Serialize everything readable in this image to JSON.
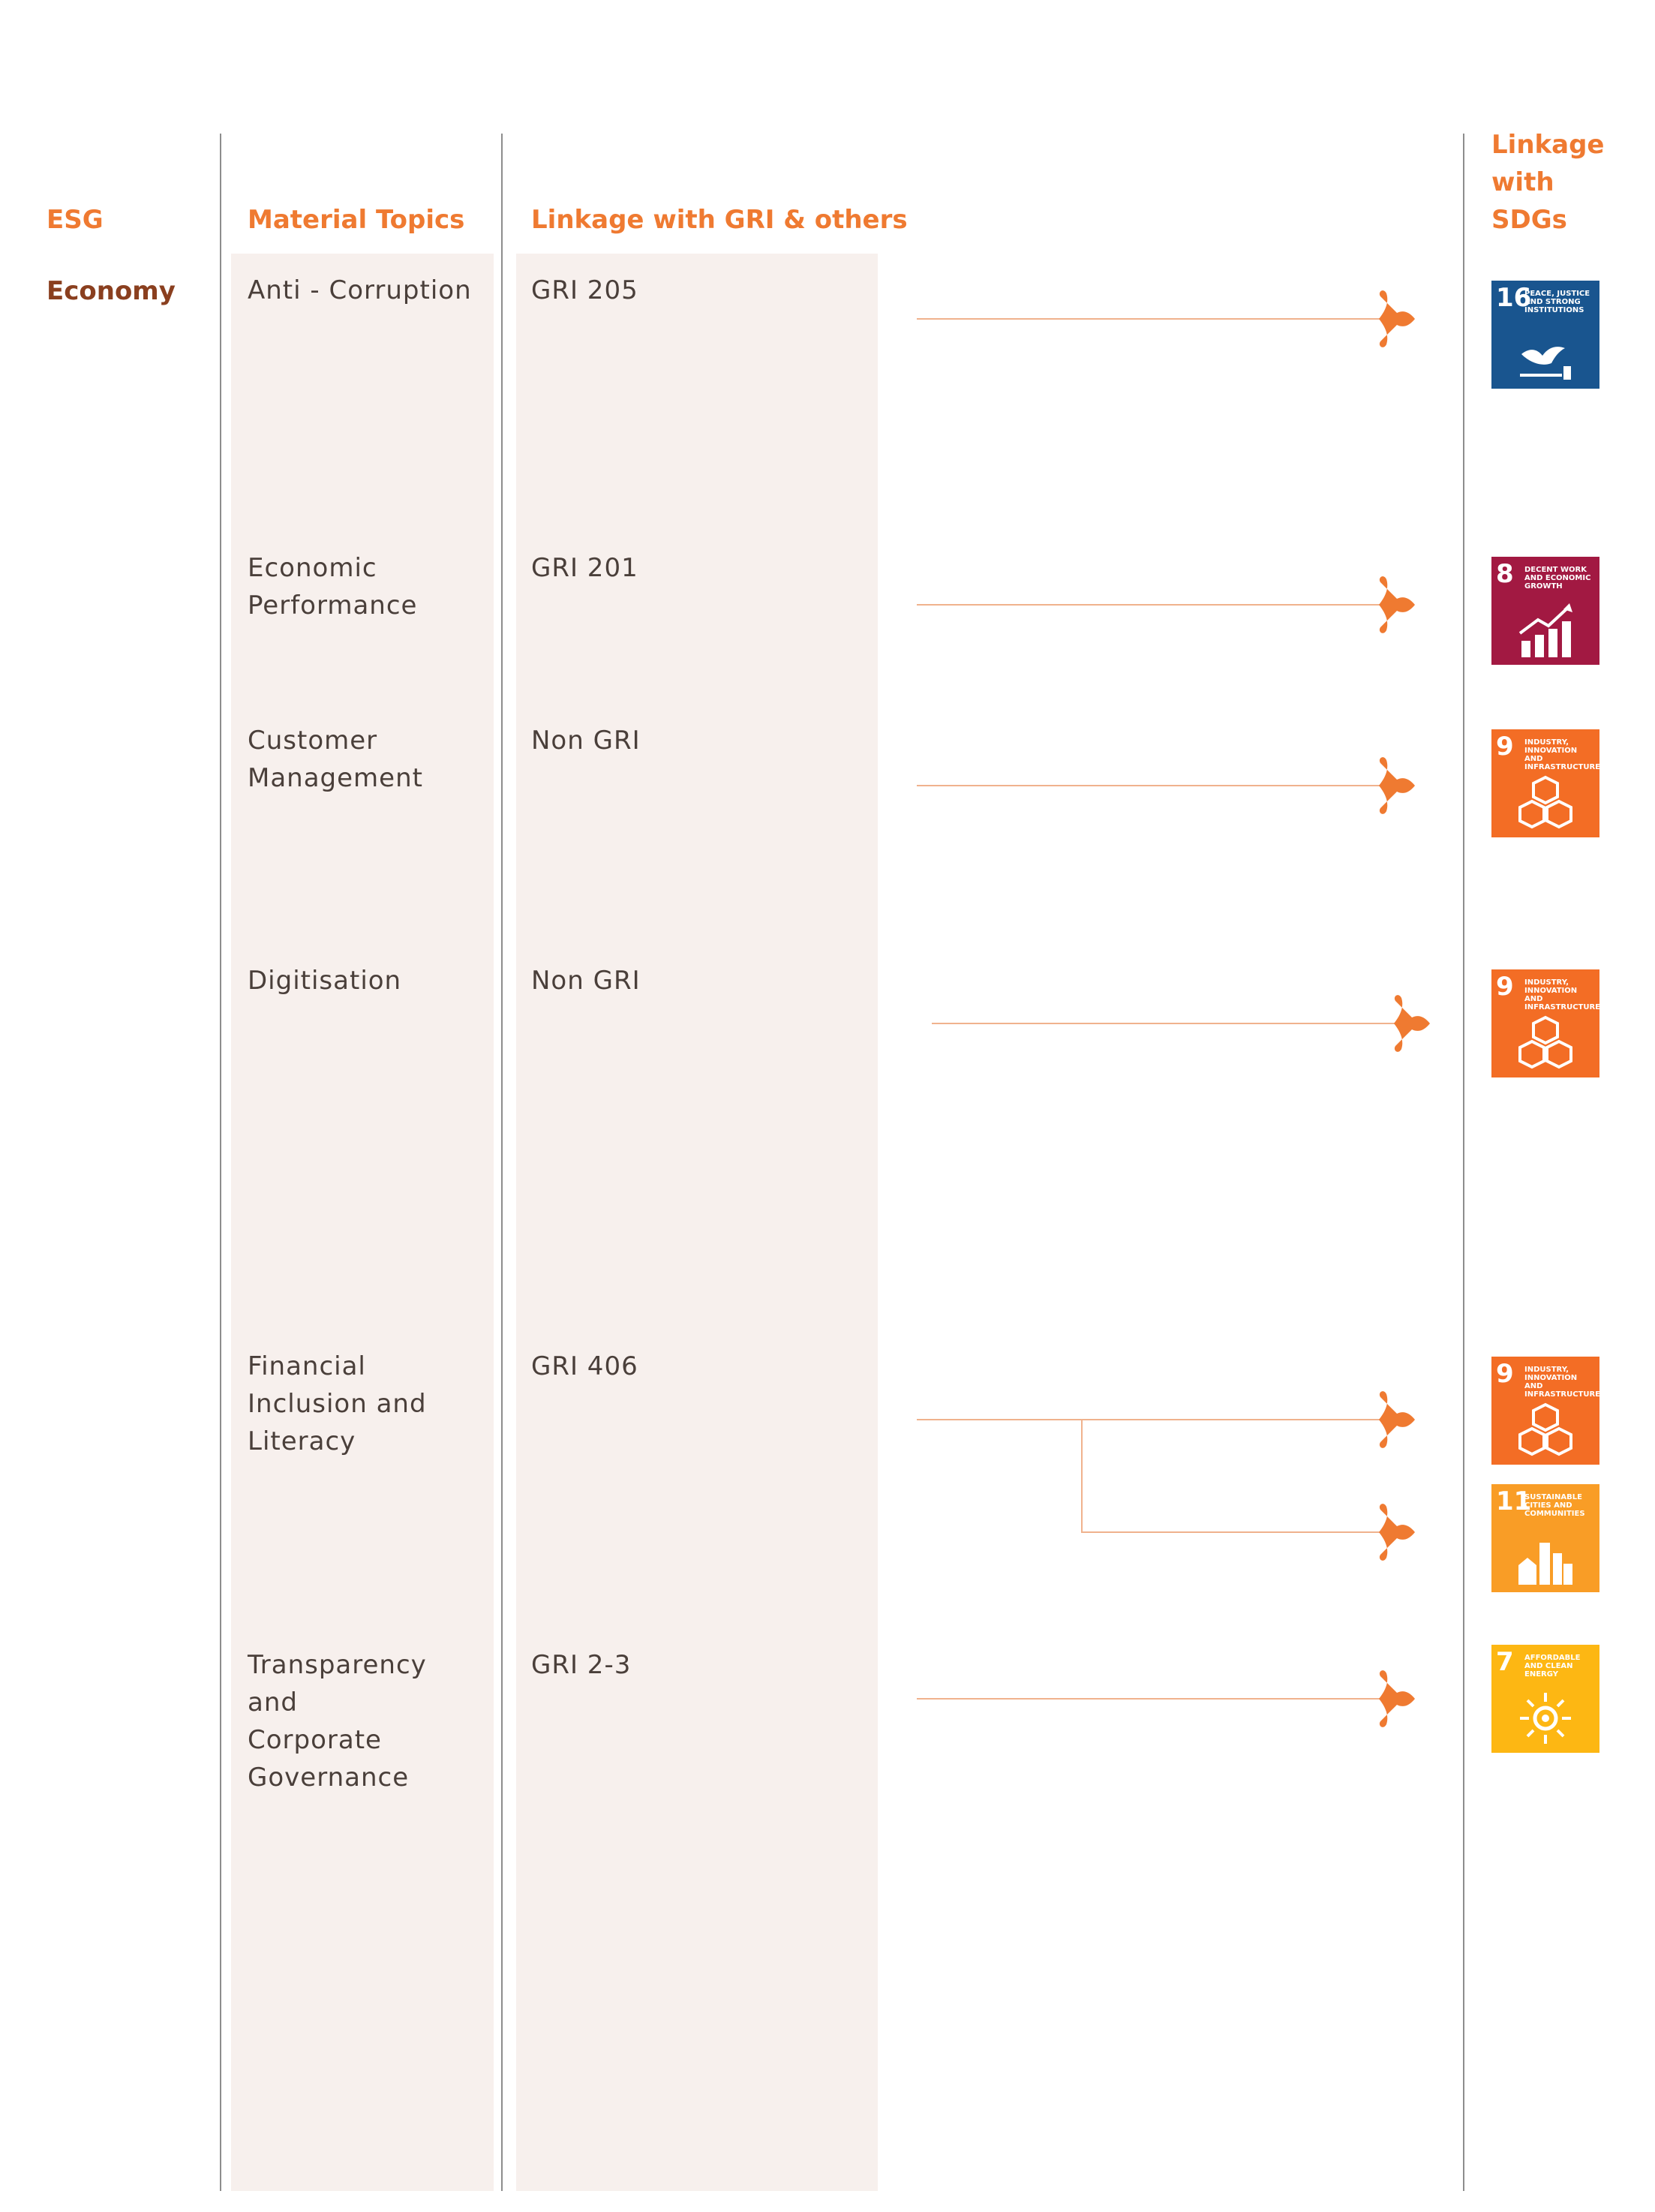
{
  "headers": {
    "esg": "ESG",
    "material_topics": "Material Topics",
    "linkage_gri": "Linkage with GRI & others",
    "linkage_sdg": "Linkage with SDGs"
  },
  "esg_category": "Economy",
  "rows": [
    {
      "topic": "Anti - Corruption",
      "gri": "GRI 205"
    },
    {
      "topic": "Economic Performance",
      "gri": "GRI 201"
    },
    {
      "topic": "Customer Management",
      "gri": "Non GRI"
    },
    {
      "topic": "Digitisation",
      "gri": "Non GRI"
    },
    {
      "topic": "Financial Inclusion and Literacy",
      "gri": "GRI 406"
    },
    {
      "topic": "Transparency and Corporate Governance",
      "gri": "GRI 2-3"
    }
  ],
  "sdgs": [
    {
      "number": "16",
      "title": "Peace, justice and strong institutions",
      "color": "#19558f",
      "icon": "dove-gavel-icon"
    },
    {
      "number": "8",
      "title": "Decent work and economic growth",
      "color": "#a21942",
      "icon": "growth-chart-icon"
    },
    {
      "number": "9",
      "title": "Industry, innovation and infrastructure",
      "color": "#f36d25",
      "icon": "cubes-icon"
    },
    {
      "number": "9",
      "title": "Industry, innovation and infrastructure",
      "color": "#f36d25",
      "icon": "cubes-icon"
    },
    {
      "number": "9",
      "title": "Industry, innovation and infrastructure",
      "color": "#f36d25",
      "icon": "cubes-icon"
    },
    {
      "number": "11",
      "title": "Sustainable cities and communities",
      "color": "#f99d26",
      "icon": "city-icon"
    },
    {
      "number": "7",
      "title": "Affordable and clean energy",
      "color": "#fdb713",
      "icon": "sun-icon"
    }
  ],
  "colors": {
    "accent": "#ef7a31",
    "connector": "#f0b28d",
    "category": "#8a3f1f"
  }
}
